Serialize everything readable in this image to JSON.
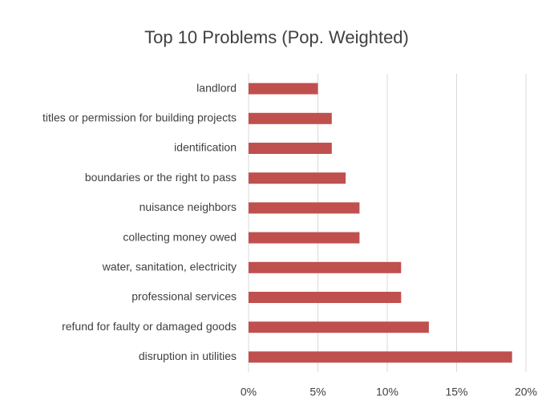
{
  "chart_data": {
    "type": "bar",
    "orientation": "horizontal",
    "title": "Top 10 Problems (Pop. Weighted)",
    "categories": [
      "landlord",
      "titles or permission for building projects",
      "identification",
      "boundaries or the right to pass",
      "nuisance neighbors",
      "collecting money owed",
      "water, sanitation, electricity",
      "professional services",
      "refund for faulty or damaged goods",
      "disruption in utilities"
    ],
    "values": [
      5,
      6,
      6,
      7,
      8,
      8,
      11,
      11,
      13,
      19
    ],
    "color": "#c0504d",
    "xlim": [
      0,
      20
    ],
    "xticks": [
      {
        "value": 0,
        "label": "0%"
      },
      {
        "value": 5,
        "label": "5%"
      },
      {
        "value": 10,
        "label": "10%"
      },
      {
        "value": 15,
        "label": "15%"
      },
      {
        "value": 20,
        "label": "20%"
      }
    ],
    "grid": true
  }
}
